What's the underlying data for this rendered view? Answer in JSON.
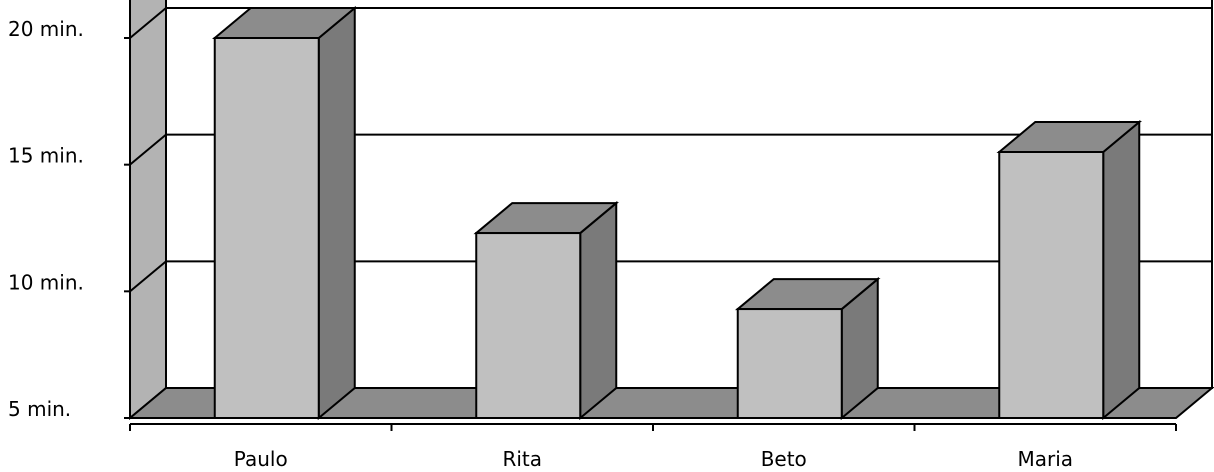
{
  "chart_data": {
    "type": "bar",
    "title": "",
    "xlabel": "",
    "ylabel": "",
    "categories": [
      "Paulo",
      "Rita",
      "Beto",
      "Maria"
    ],
    "values": [
      20,
      12.3,
      9.3,
      15.5
    ],
    "ylim": [
      5,
      20
    ],
    "y_ticks": [
      {
        "value": 20,
        "label": "20 min."
      },
      {
        "value": 15,
        "label": "15 min."
      },
      {
        "value": 10,
        "label": "10 min."
      },
      {
        "value": 5,
        "label": "5 min."
      }
    ],
    "grid": true,
    "legend": "none",
    "style": "3d",
    "colors": {
      "bar_front": "#c0c0c0",
      "bar_top": "#8c8c8c",
      "bar_side": "#7a7a7a",
      "wall": "#b3b3b3",
      "floor": "#8c8c8c",
      "outline": "#000000"
    }
  }
}
